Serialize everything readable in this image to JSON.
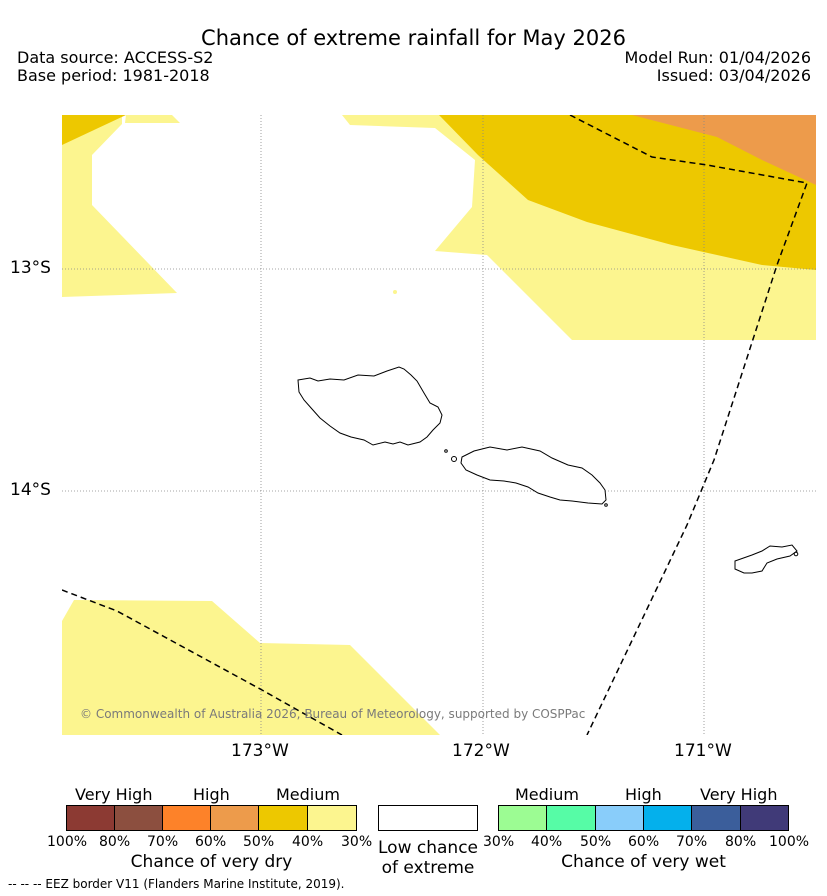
{
  "title": "Chance of extreme rainfall for May 2026",
  "header": {
    "data_source": "Data source: ACCESS-S2",
    "base_period": "Base period: 1981-2018",
    "model_run": "Model Run: 01/04/2026",
    "issued": "Issued: 03/04/2026"
  },
  "map": {
    "lat_labels": [
      "13°S",
      "14°S"
    ],
    "lon_labels": [
      "173°W",
      "172°W",
      "171°W"
    ],
    "copyright": "© Commonwealth of Australia 2026, Bureau of Meteorology, supported by COSPPac",
    "colors": {
      "dry_medium_light": "#fcf58f",
      "dry_medium": "#edc800",
      "dry_high": "#ed9b4b"
    }
  },
  "legend": {
    "dry": {
      "categories": [
        "Very High",
        "High",
        "Medium"
      ],
      "ticks": [
        "100%",
        "80%",
        "70%",
        "60%",
        "50%",
        "40%",
        "30%"
      ],
      "caption": "Chance of very dry",
      "colors": [
        "#8c3a33",
        "#8c4f3f",
        "#fd8229",
        "#ed9b4b",
        "#edc800",
        "#fcf58f"
      ]
    },
    "neutral": {
      "caption_line1": "Low chance",
      "caption_line2": "of extreme",
      "color": "#ffffff"
    },
    "wet": {
      "categories": [
        "Medium",
        "High",
        "Very High"
      ],
      "ticks": [
        "30%",
        "40%",
        "50%",
        "60%",
        "70%",
        "80%",
        "100%"
      ],
      "caption": "Chance of very wet",
      "colors": [
        "#9cfc93",
        "#56fca6",
        "#89cdfa",
        "#04b0ec",
        "#3b5e9b",
        "#403a78"
      ]
    }
  },
  "footnote": "-- -- -- EEZ border V11 (Flanders Marine Institute, 2019)."
}
